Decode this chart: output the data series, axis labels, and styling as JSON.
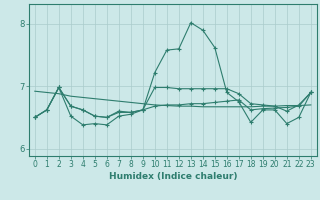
{
  "x": [
    0,
    1,
    2,
    3,
    4,
    5,
    6,
    7,
    8,
    9,
    10,
    11,
    12,
    13,
    14,
    15,
    16,
    17,
    18,
    19,
    20,
    21,
    22,
    23
  ],
  "lines": [
    [
      6.5,
      6.62,
      6.98,
      6.68,
      6.62,
      6.52,
      6.5,
      6.6,
      6.58,
      6.62,
      6.68,
      6.7,
      6.7,
      6.72,
      6.72,
      6.74,
      6.76,
      6.78,
      6.62,
      6.64,
      6.65,
      6.66,
      6.68,
      6.9
    ],
    [
      6.5,
      6.62,
      6.98,
      6.52,
      6.38,
      6.4,
      6.38,
      6.52,
      6.55,
      6.62,
      7.22,
      7.58,
      7.6,
      8.02,
      7.9,
      7.62,
      6.9,
      6.75,
      6.42,
      6.62,
      6.62,
      6.4,
      6.5,
      6.9
    ],
    [
      6.5,
      6.62,
      6.98,
      6.68,
      6.62,
      6.52,
      6.5,
      6.58,
      6.58,
      6.62,
      6.98,
      6.98,
      6.96,
      6.96,
      6.96,
      6.96,
      6.96,
      6.88,
      6.72,
      6.7,
      6.68,
      6.6,
      6.7,
      6.9
    ],
    [
      6.92,
      6.9,
      6.88,
      6.84,
      6.82,
      6.8,
      6.78,
      6.76,
      6.74,
      6.72,
      6.7,
      6.69,
      6.68,
      6.68,
      6.67,
      6.67,
      6.67,
      6.67,
      6.67,
      6.68,
      6.68,
      6.69,
      6.69,
      6.7
    ]
  ],
  "has_markers": [
    true,
    true,
    true,
    false
  ],
  "line_color": "#2e7d6e",
  "line_width": 0.8,
  "marker": "+",
  "marker_size": 3,
  "bg_color": "#cce8e8",
  "grid_color": "#aacccc",
  "axis_color": "#2e7d6e",
  "xlabel": "Humidex (Indice chaleur)",
  "xlim": [
    -0.5,
    23.5
  ],
  "ylim": [
    5.88,
    8.32
  ],
  "yticks": [
    6,
    7,
    8
  ],
  "xticks": [
    0,
    1,
    2,
    3,
    4,
    5,
    6,
    7,
    8,
    9,
    10,
    11,
    12,
    13,
    14,
    15,
    16,
    17,
    18,
    19,
    20,
    21,
    22,
    23
  ],
  "tick_fontsize": 5.5,
  "xlabel_fontsize": 6.5
}
